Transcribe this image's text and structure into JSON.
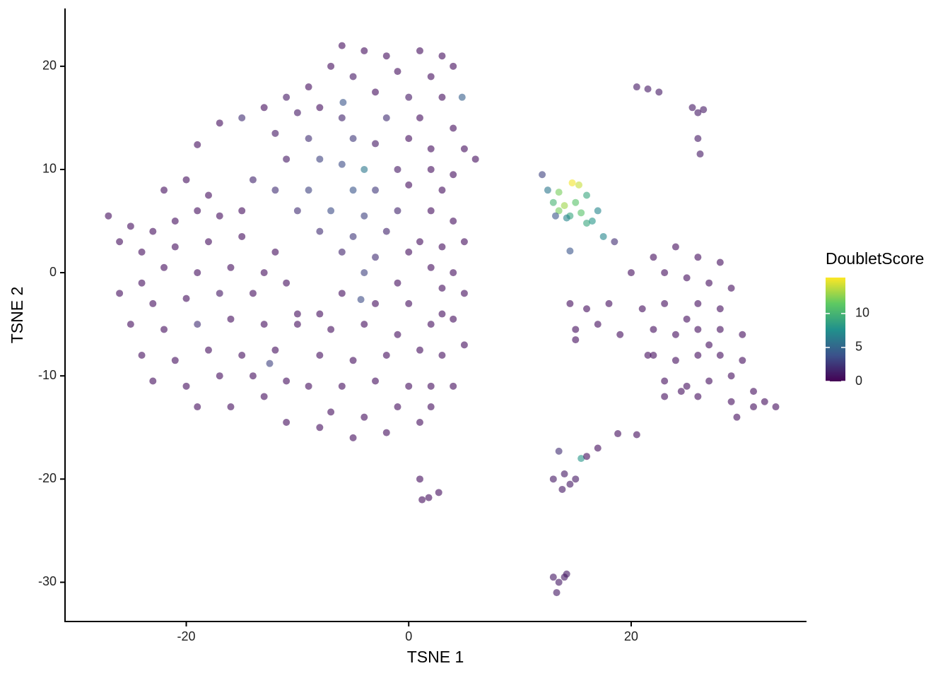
{
  "chart_data": {
    "type": "scatter",
    "x_label": "TSNE 1",
    "y_label": "TSNE 2",
    "color_label": "DoubletScore",
    "xlim": [
      -30.9,
      35.7
    ],
    "ylim": [
      -33.8,
      25.6
    ],
    "xticks": [
      -20,
      0,
      20
    ],
    "yticks": [
      -30,
      -20,
      -10,
      0,
      10,
      20
    ],
    "clim": [
      0,
      15.3
    ],
    "cticks": [
      0,
      5,
      10
    ],
    "colormap": [
      "#440154",
      "#3b528b",
      "#21918c",
      "#5ec962",
      "#fde725"
    ],
    "opacity": 0.6,
    "x": [
      -6,
      -4,
      -2,
      1,
      3,
      4,
      -7,
      -5,
      -1,
      2,
      -9,
      -11,
      -3,
      0,
      3,
      -13,
      -10,
      -8,
      -6,
      -2,
      1,
      4,
      -15,
      -17,
      -12,
      -9,
      -5,
      -3,
      0,
      2,
      5,
      6,
      -11,
      -8,
      -6,
      -4,
      -1,
      2,
      4,
      -14,
      -12,
      -9,
      -5,
      -3,
      0,
      3,
      -10,
      -7,
      -4,
      -1,
      2,
      4,
      -8,
      -5,
      -2,
      1,
      3,
      5,
      -6,
      -3,
      0,
      2,
      4,
      -4,
      -1,
      3,
      5,
      -5.9,
      4.8,
      -4.3,
      -27,
      -25,
      -23,
      -21,
      -19,
      -17,
      -15,
      -22,
      -20,
      -18,
      -26,
      -24,
      -21,
      -18,
      -15,
      -12,
      -13,
      -16,
      -19,
      -22,
      -24,
      -26,
      -23,
      -20,
      -17,
      -14,
      -11,
      -25,
      -22,
      -19,
      -16,
      -13,
      -10,
      -24,
      -21,
      -18,
      -15,
      -12,
      -23,
      -20,
      -17,
      -14,
      -11,
      -19,
      -16,
      -13,
      -19,
      -12.5,
      -10,
      -7,
      -4,
      -1,
      2,
      4,
      -8,
      -5,
      -2,
      1,
      3,
      -9,
      -6,
      -3,
      0,
      2,
      4,
      -7,
      -4,
      -1,
      2,
      -5,
      -2,
      1,
      -11,
      -8,
      5,
      -8,
      -6,
      -3,
      0,
      3,
      12,
      12.5,
      13.5,
      14.7,
      15.3,
      13,
      14,
      15,
      16,
      13.5,
      14.5,
      15.5,
      16.5,
      17,
      14.2,
      13.2,
      17.5,
      18.5,
      14.5,
      16,
      20.5,
      21.5,
      22.5,
      25.5,
      26,
      26.5,
      26,
      26.2,
      24,
      22,
      26,
      28,
      20,
      23,
      25,
      27,
      29,
      14.5,
      16,
      18,
      21,
      23,
      26,
      28,
      15,
      17,
      19,
      22,
      24,
      26,
      28,
      30,
      15,
      22,
      24,
      26,
      28,
      30,
      23,
      25,
      27,
      29,
      31,
      23,
      26,
      29,
      32,
      33,
      31,
      29.5,
      24.5,
      21.5,
      27,
      25,
      1,
      1.2,
      1.8,
      2.7,
      13.5,
      15.5,
      16,
      17,
      18.8,
      20.5,
      13,
      14,
      14.5,
      13.8,
      15,
      13,
      13.5,
      14,
      13.3,
      14.2
    ],
    "values": [
      22,
      21.5,
      21,
      21.5,
      21,
      20,
      20,
      19,
      19.5,
      19,
      18,
      17,
      17.5,
      17,
      17,
      16,
      15.5,
      16,
      15,
      15,
      15,
      14,
      15,
      14.5,
      13.5,
      13,
      13,
      12.5,
      13,
      12,
      12,
      11,
      11,
      11,
      10.5,
      10,
      10,
      10,
      9.5,
      9,
      8,
      8,
      8,
      8,
      8.5,
      8,
      6,
      6,
      5.5,
      6,
      6,
      5,
      4,
      3.5,
      4,
      3,
      2.5,
      3,
      2,
      1.5,
      2,
      0.5,
      0,
      0,
      -1,
      -1.5,
      -2,
      16.5,
      17,
      -2.6,
      5.5,
      4.5,
      4,
      5,
      6,
      5.5,
      6,
      8,
      9,
      7.5,
      3,
      2,
      2.5,
      3,
      3.5,
      2,
      0,
      0.5,
      0,
      0.5,
      -1,
      -2,
      -3,
      -2.5,
      -2,
      -2,
      -1,
      -5,
      -5.5,
      -5,
      -4.5,
      -5,
      -4,
      -8,
      -8.5,
      -7.5,
      -8,
      -7.5,
      -10.5,
      -11,
      -10,
      -10,
      -10.5,
      -13,
      -13,
      -12,
      12.4,
      -8.8,
      -5,
      -5.5,
      -5,
      -6,
      -5,
      -4.5,
      -8,
      -8.5,
      -8,
      -7.5,
      -8,
      -11,
      -11,
      -10.5,
      -11,
      -11,
      -11,
      -13.5,
      -14,
      -13,
      -13,
      -16,
      -15.5,
      -14.5,
      -14.5,
      -15,
      -7,
      -4,
      -2,
      -3,
      -3,
      -4,
      9.5,
      8,
      7.8,
      8.7,
      8.5,
      6.8,
      6.5,
      6.8,
      7.5,
      6,
      5.5,
      5.8,
      5,
      6,
      5.3,
      5.5,
      3.5,
      3,
      2.1,
      4.8,
      18,
      17.8,
      17.5,
      16,
      15.5,
      15.8,
      13,
      11.5,
      2.5,
      1.5,
      1.5,
      1,
      0,
      0,
      -0.5,
      -1,
      -1.5,
      -3,
      -3.5,
      -3,
      -3.5,
      -3,
      -3,
      -3.5,
      -5.5,
      -5,
      -6,
      -5.5,
      -6,
      -5.5,
      -5.5,
      -6,
      -6.5,
      -8,
      -8.5,
      -8,
      -8,
      -8.5,
      -10.5,
      -11,
      -10.5,
      -10,
      -11.5,
      -12,
      -12,
      -12.5,
      -12.5,
      -13,
      -13,
      -14,
      -11.5,
      -8,
      -7,
      -4.5,
      -20,
      -22,
      -21.8,
      -21.3,
      -17.3,
      -18,
      -17.8,
      -17,
      -15.6,
      -15.7,
      -20,
      -19.5,
      -20.5,
      -21,
      -20,
      -29.5,
      -30,
      -29.5,
      -31,
      -29.2
    ],
    "color_values": [
      0.5,
      0.5,
      0.5,
      0.5,
      0.5,
      0.5,
      0.5,
      1,
      0.5,
      0.5,
      0.5,
      1,
      0.5,
      1,
      0.5,
      0.5,
      1,
      0.5,
      1.5,
      2,
      0.5,
      0.5,
      2,
      0.5,
      1,
      2,
      2.5,
      1,
      0.5,
      0.5,
      0.5,
      0.5,
      1,
      3,
      3.5,
      6,
      1,
      0.5,
      0.5,
      1.5,
      2,
      3,
      4,
      2.5,
      0.5,
      0.5,
      2,
      3.5,
      3,
      1.5,
      0.5,
      0.5,
      2,
      2.5,
      1.5,
      0.5,
      0.5,
      0.5,
      1.5,
      2,
      0.5,
      0.5,
      0.5,
      3,
      0.5,
      0.5,
      0.5,
      4,
      4.5,
      3.5,
      0.5,
      0.5,
      0.5,
      0.5,
      0.5,
      0.5,
      0.5,
      0.5,
      0.5,
      0.5,
      0.5,
      0.5,
      0.5,
      0.5,
      0.5,
      0.5,
      0.5,
      0.5,
      0.5,
      0.5,
      0.5,
      0.5,
      0.5,
      0.5,
      1,
      0.5,
      0.5,
      0.5,
      0.5,
      2,
      0.5,
      0.5,
      0.5,
      0.5,
      0.5,
      0.5,
      0.5,
      0.5,
      0.5,
      0.5,
      0.5,
      0.5,
      0.5,
      0.5,
      0.5,
      0.5,
      0.5,
      3,
      0.5,
      0.5,
      0.5,
      0.5,
      0.5,
      0.5,
      0.5,
      0.5,
      0.5,
      0.5,
      0.5,
      0.5,
      0.5,
      0.5,
      0.5,
      0.5,
      0.5,
      0.5,
      0.5,
      0.5,
      0.5,
      0.5,
      0.5,
      0.5,
      0.5,
      0.5,
      0.5,
      0.5,
      0.5,
      0.5,
      0.5,
      0.5,
      3,
      6,
      12,
      15,
      14,
      10,
      13,
      11,
      9,
      12,
      9,
      11,
      8,
      7,
      7,
      4,
      7,
      2,
      4,
      9,
      1,
      1,
      1,
      1,
      1,
      1,
      1,
      1,
      0.5,
      0.5,
      0.5,
      0.5,
      0.5,
      0.5,
      0.5,
      0.5,
      0.5,
      0.5,
      0.5,
      0.5,
      0.5,
      0.5,
      0.5,
      0.5,
      0.5,
      0.5,
      0.5,
      0.5,
      0.5,
      0.5,
      0.5,
      0.5,
      0.5,
      0.5,
      0.5,
      0.5,
      0.5,
      0.5,
      0.5,
      0.5,
      0.5,
      0.5,
      0.5,
      0.5,
      0.5,
      0.5,
      0.5,
      0.5,
      0.5,
      0.5,
      0.5,
      0.5,
      0.5,
      0.5,
      0.5,
      0.5,
      0.5,
      0.5,
      2,
      8,
      0.5,
      0.5,
      0.5,
      0.5,
      1,
      1,
      1,
      1,
      1,
      1,
      1,
      1,
      1,
      1
    ]
  }
}
